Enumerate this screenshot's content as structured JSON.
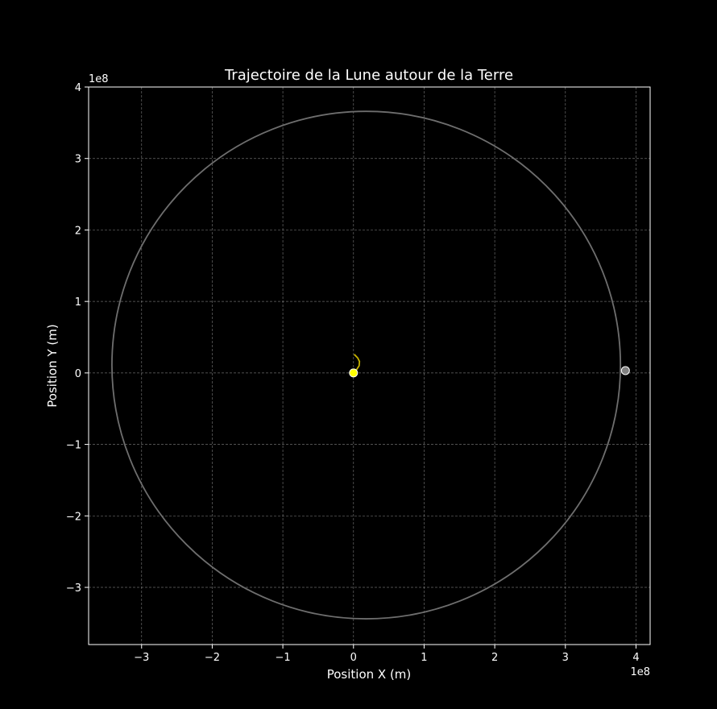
{
  "chart_data": {
    "type": "line",
    "title": "Trajectoire de la Lune autour de la Terre",
    "xlabel": "Position X (m)",
    "ylabel": "Position Y (m)",
    "x_offset_text": "1e8",
    "y_offset_text": "1e8",
    "xlim": [
      -375000000.0,
      420000000.0
    ],
    "ylim": [
      -380000000.0,
      400000000.0
    ],
    "x_ticks": [
      -300000000.0,
      -200000000.0,
      -100000000.0,
      0,
      100000000.0,
      200000000.0,
      300000000.0,
      400000000.0
    ],
    "x_tick_labels": [
      "−3",
      "−2",
      "−1",
      "0",
      "1",
      "2",
      "3",
      "4"
    ],
    "y_ticks": [
      -300000000.0,
      -200000000.0,
      -100000000.0,
      0,
      100000000.0,
      200000000.0,
      300000000.0,
      400000000.0
    ],
    "y_tick_labels": [
      "−3",
      "−2",
      "−1",
      "0",
      "1",
      "2",
      "3",
      "4"
    ],
    "grid": true,
    "series": [
      {
        "role": "moon-orbit",
        "color": "#6e6e6e",
        "shape": "ellipse",
        "center": [
          18000000.0,
          11000000.0
        ],
        "radius_x": 360000000.0,
        "radius_y": 355000000.0
      },
      {
        "role": "earth-track",
        "color": "#c8b400",
        "points": [
          [
            0,
            0
          ],
          [
            4000000.0,
            4000000.0
          ],
          [
            8000000.0,
            10000000.0
          ],
          [
            8500000.0,
            16000000.0
          ],
          [
            6000000.0,
            21000000.0
          ],
          [
            1000000.0,
            26000000.0
          ]
        ]
      }
    ],
    "markers": [
      {
        "role": "earth",
        "x": 0,
        "y": 0,
        "color": "#ffff00",
        "edge": "#ffffff"
      },
      {
        "role": "moon",
        "x": 385000000.0,
        "y": 3300000.0,
        "color": "#808080",
        "edge": "#ffffff"
      }
    ]
  }
}
